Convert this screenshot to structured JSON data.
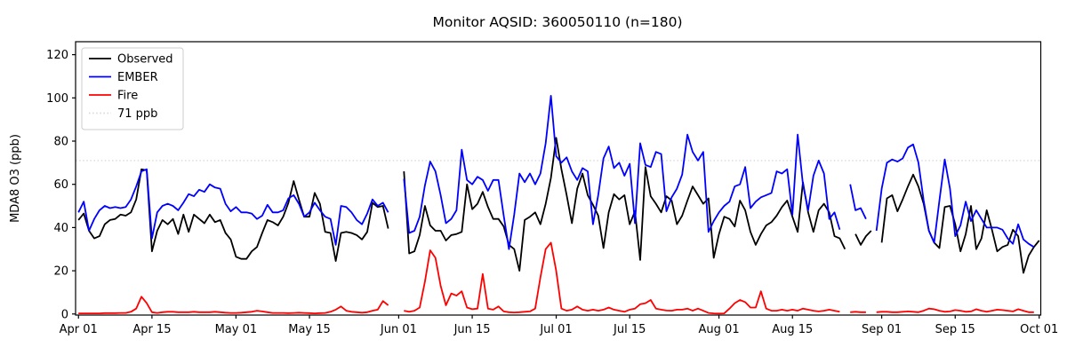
{
  "figure": {
    "background": "#ffffff"
  },
  "chart_data": {
    "type": "line",
    "title": "Monitor AQSID: 360050110 (n=180)",
    "ylabel": "MDA8 O3 (ppb)",
    "xlabel": "",
    "ylim": [
      -0.5,
      126
    ],
    "yticks": [
      0,
      20,
      40,
      60,
      80,
      100,
      120
    ],
    "xtick_labels": [
      "Apr 01",
      "Apr 15",
      "May 01",
      "May 15",
      "Jun 01",
      "Jun 15",
      "Jul 01",
      "Jul 15",
      "Aug 01",
      "Aug 15",
      "Sep 01",
      "Sep 15",
      "Oct 01"
    ],
    "xtick_days": [
      0,
      14,
      30,
      44,
      61,
      75,
      91,
      105,
      122,
      136,
      153,
      167,
      183
    ],
    "n_days": 183,
    "grid": false,
    "legend_position": "upper left",
    "legend": [
      "Observed",
      "EMBER",
      "Fire",
      "71 ppb"
    ],
    "threshold": {
      "value": 71,
      "label": "71 ppb",
      "color": "#d9d9d9",
      "style": "dotted"
    },
    "missing_days_note": "values are null where the lines break (no data)",
    "series": [
      {
        "name": "Observed",
        "color": "#000000",
        "values": [
          43.5,
          46.5,
          38.5,
          35,
          36,
          41.5,
          43.5,
          44,
          46,
          45.5,
          47,
          53,
          67,
          66.5,
          29,
          38.5,
          43.5,
          41.5,
          44,
          37,
          46,
          38,
          46,
          44,
          42,
          46,
          42.5,
          43.5,
          37.5,
          34.5,
          26.5,
          25.5,
          25.5,
          29,
          31,
          37.5,
          43.5,
          42.5,
          41,
          45,
          51.5,
          61.5,
          53,
          45,
          45,
          56,
          51,
          38,
          37.5,
          24.5,
          37.5,
          38,
          37.5,
          36.5,
          34.5,
          38,
          51.5,
          49.5,
          50,
          39.5,
          null,
          null,
          66,
          28,
          29,
          36.5,
          50,
          41,
          38.5,
          38.5,
          34,
          36.5,
          37,
          38,
          60,
          48.5,
          51,
          56.5,
          49.5,
          44,
          44,
          40.5,
          32,
          30,
          20,
          43.5,
          45,
          47,
          41.5,
          51,
          63,
          81.5,
          67,
          55,
          42,
          58,
          65,
          55,
          50.5,
          45.5,
          30.5,
          47,
          55.5,
          53,
          55,
          41.5,
          47.5,
          25,
          68,
          54.5,
          51,
          47,
          54.5,
          52.5,
          41.5,
          45.5,
          52.5,
          59,
          55,
          51,
          53.5,
          26,
          37,
          45,
          44,
          40.5,
          52.5,
          48,
          38,
          32,
          37,
          41,
          42.5,
          45.5,
          49.5,
          52.5,
          45,
          38,
          61,
          47,
          38,
          48,
          51,
          47,
          36,
          35,
          30,
          null,
          37,
          32,
          36,
          38.5,
          null,
          33,
          53.5,
          55,
          47.5,
          53,
          59,
          64.5,
          59,
          51,
          38.5,
          33,
          30.5,
          49.5,
          50,
          41.5,
          29,
          37,
          50,
          30,
          35,
          48,
          39,
          29,
          31,
          32,
          39,
          36,
          19,
          27,
          31,
          34
        ]
      },
      {
        "name": "EMBER",
        "color": "#0000ff",
        "values": [
          47,
          52,
          38.5,
          44,
          48,
          50,
          49,
          49.5,
          49,
          49.5,
          53,
          59,
          66,
          67,
          35,
          47,
          50,
          51,
          50,
          48,
          51.5,
          55.5,
          54.5,
          57.5,
          56.5,
          60,
          58.5,
          58,
          51,
          47.5,
          49.5,
          47,
          47,
          46.5,
          44,
          45.5,
          50.5,
          47,
          47,
          48,
          53.5,
          55,
          51,
          45,
          47,
          51.5,
          48,
          45,
          44,
          32,
          50,
          49.5,
          47,
          43.5,
          41.5,
          46.5,
          53,
          50,
          51.5,
          47,
          null,
          null,
          62.5,
          37.5,
          38.5,
          45,
          59.5,
          70.5,
          66,
          55,
          42,
          44,
          48,
          76,
          62,
          60,
          63.5,
          62,
          57,
          62,
          62,
          45.5,
          30,
          46,
          65,
          61,
          65,
          60,
          65,
          79,
          101,
          73,
          70,
          72.5,
          66,
          62,
          67.5,
          66,
          41.5,
          55,
          72,
          77.5,
          67.5,
          70,
          64,
          69.5,
          42,
          79,
          69,
          68,
          75,
          74,
          47.5,
          54,
          58,
          64.5,
          83,
          75,
          71,
          75,
          38,
          43,
          47,
          50,
          52,
          59,
          60,
          68,
          49,
          52,
          54,
          55,
          56,
          66,
          65,
          67,
          46,
          83,
          60,
          48,
          64,
          71,
          65,
          44,
          47,
          39,
          null,
          60,
          48,
          49,
          44,
          null,
          38.5,
          58,
          70,
          71.5,
          70.5,
          72,
          77,
          78.5,
          70,
          52.5,
          38.5,
          33,
          52.5,
          71.5,
          58,
          36,
          41,
          52,
          43,
          48,
          44,
          40,
          40,
          40,
          39,
          35,
          32.5,
          41.5,
          34.5,
          32.5,
          31
        ]
      },
      {
        "name": "Fire",
        "color": "#ff0000",
        "values": [
          0.3,
          0.3,
          0.3,
          0.3,
          0.3,
          0.4,
          0.4,
          0.4,
          0.5,
          0.5,
          1,
          2.5,
          8,
          5,
          0.8,
          0.5,
          0.8,
          1,
          1,
          0.8,
          0.8,
          0.8,
          1,
          0.8,
          0.8,
          0.8,
          1,
          0.8,
          0.6,
          0.5,
          0.5,
          0.6,
          0.8,
          1,
          1.5,
          1.2,
          0.8,
          0.5,
          0.5,
          0.5,
          0.4,
          0.5,
          0.6,
          0.5,
          0.4,
          0.3,
          0.4,
          0.5,
          1,
          2,
          3.5,
          1.5,
          1,
          0.8,
          0.6,
          0.8,
          1.5,
          2,
          6,
          4,
          null,
          null,
          1.5,
          1,
          1.5,
          3,
          15,
          29.5,
          26,
          13,
          4,
          9.5,
          8.5,
          10.5,
          3,
          2.2,
          2.5,
          18.5,
          2.5,
          2,
          3.5,
          1.2,
          0.8,
          0.7,
          0.8,
          1,
          1.2,
          2.5,
          17,
          30,
          33,
          20,
          2.5,
          1.5,
          2,
          3.5,
          2,
          1.5,
          2,
          1.5,
          2,
          3,
          2,
          1.5,
          1,
          2,
          2.5,
          4.5,
          5,
          6.5,
          2.5,
          2,
          1.6,
          1.5,
          2,
          2,
          2.5,
          1.5,
          2.5,
          1.5,
          0.5,
          0.3,
          0.2,
          0.3,
          2.5,
          5,
          6.5,
          5.5,
          3,
          3,
          10.5,
          2.5,
          1.5,
          1.5,
          2,
          1.5,
          2,
          1.5,
          2.5,
          2,
          1.5,
          1.2,
          1.5,
          2,
          1.5,
          1,
          null,
          0.8,
          1,
          0.8,
          0.8,
          null,
          0.8,
          1,
          1,
          0.8,
          0.8,
          1,
          1.2,
          1,
          0.8,
          1.5,
          2.5,
          2.2,
          1.5,
          1,
          1.2,
          1.8,
          1.5,
          1,
          1.2,
          2.2,
          1.5,
          1,
          1.5,
          2,
          1.8,
          1.5,
          1.2,
          2.2,
          1.5,
          0.8,
          0.8
        ]
      }
    ]
  }
}
